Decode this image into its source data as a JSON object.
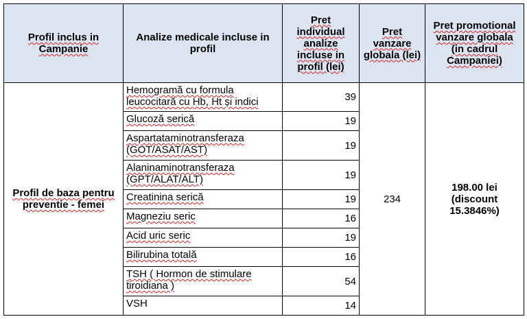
{
  "headers": {
    "profile": "Profil inclus in Campanie",
    "tests": "Analize medicale incluse in profil",
    "individual_price": "Pret individual analize incluse in profil (lei)",
    "global_price": "Pret vanzare globala (lei)",
    "promo_price": "Pret promotional vanzare globala (in cadrul Campaniei)"
  },
  "profile_name": "Profil de baza pentru preventie - femei",
  "global_price": "234",
  "promo_price": "198.00 lei (discount 15.3846%)",
  "rows": [
    {
      "name": "Hemogramă cu formula leucocitară cu Hb, Ht și indici",
      "price": "39"
    },
    {
      "name": "Glucoză serică",
      "price": "19"
    },
    {
      "name": "Aspartataminotransferaza (GOT/ASAT/AST)",
      "price": "19"
    },
    {
      "name": "Alaninaminotransferaza (GPT/ALAT/ALT)",
      "price": "19"
    },
    {
      "name": "Creatinina serică",
      "price": "19"
    },
    {
      "name": "Magneziu seric",
      "price": "16"
    },
    {
      "name": "Acid uric seric",
      "price": "19"
    },
    {
      "name": "Bilirubina totală",
      "price": "16"
    },
    {
      "name": "TSH ( Hormon de stimulare tiroidiana )",
      "price": "54"
    },
    {
      "name": "VSH",
      "price": "14"
    }
  ]
}
